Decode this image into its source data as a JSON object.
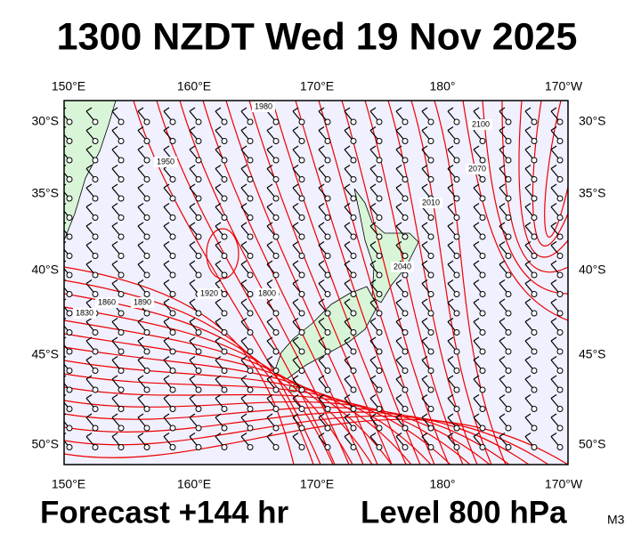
{
  "title": "1300 NZDT Wed 19 Nov 2025",
  "footer": {
    "forecast": "Forecast +144 hr",
    "level": "Level 800 hPa",
    "model": "M3"
  },
  "axes": {
    "top_labels": [
      "150°E",
      "160°E",
      "170°E",
      "180°",
      "170°W"
    ],
    "bottom_labels": [
      "150°E",
      "160°E",
      "170°E",
      "180°",
      "170°W"
    ],
    "left_labels": [
      "30°S",
      "35°S",
      "40°S",
      "45°S",
      "50°S"
    ],
    "right_labels": [
      "30°S",
      "35°S",
      "40°S",
      "45°S",
      "50°S"
    ]
  },
  "contour_labels": [
    "1980",
    "1950",
    "1920",
    "1890",
    "1860",
    "1830",
    "1800",
    "2010",
    "2040",
    "2070",
    "2100"
  ]
}
